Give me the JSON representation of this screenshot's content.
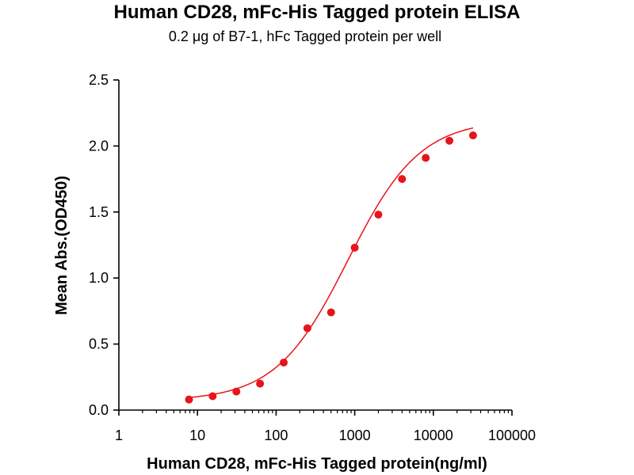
{
  "chart_data": {
    "type": "scatter",
    "title": "Human CD28, mFc-His Tagged protein ELISA",
    "subtitle": "0.2 μg of B7-1, hFc Tagged protein per well",
    "xlabel": "Human CD28, mFc-His Tagged protein(ng/ml)",
    "ylabel": "Mean Abs.(OD450)",
    "x_scale": "log",
    "xlim": [
      1,
      100000
    ],
    "ylim": [
      0.0,
      2.5
    ],
    "x_ticks": [
      1,
      10,
      100,
      1000,
      10000,
      100000
    ],
    "x_tick_labels": [
      "1",
      "10",
      "100",
      "1000",
      "10000",
      "100000"
    ],
    "y_ticks": [
      0.0,
      0.5,
      1.0,
      1.5,
      2.0,
      2.5
    ],
    "y_tick_labels": [
      "0.0",
      "0.5",
      "1.0",
      "1.5",
      "2.0",
      "2.5"
    ],
    "grid": false,
    "series": [
      {
        "color": "#e8141c",
        "x": [
          7.8,
          15.6,
          31.25,
          62.5,
          125,
          250,
          500,
          1000,
          2000,
          4000,
          8000,
          16000,
          32000
        ],
        "y": [
          0.08,
          0.105,
          0.14,
          0.2,
          0.36,
          0.62,
          0.74,
          1.23,
          1.48,
          1.75,
          1.91,
          2.04,
          2.08
        ]
      }
    ],
    "fit_curve": {
      "color": "#e8141c",
      "model": "4PL",
      "bottom": 0.07,
      "top": 2.2,
      "ec50": 820,
      "hill": 0.95
    }
  }
}
